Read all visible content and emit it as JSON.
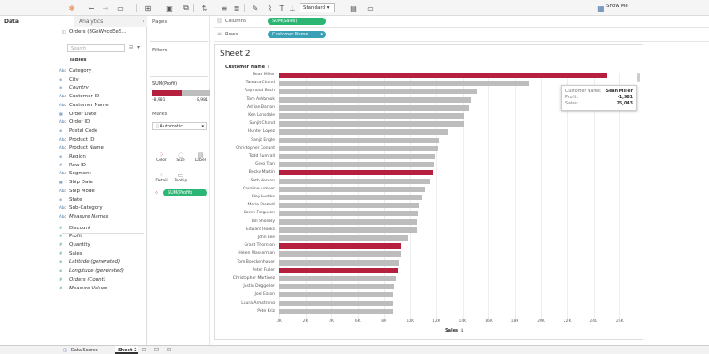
{
  "toolbar": {
    "standard_label": "Standard",
    "showme_label": "Show Me"
  },
  "left": {
    "tab_data": "Data",
    "tab_analytics": "Analytics",
    "datasource": "Orders (8GnWvcdEeS...",
    "search_placeholder": "Search",
    "tables_label": "Tables",
    "fields": [
      {
        "icon": "Abc",
        "name": "Category",
        "m": false
      },
      {
        "icon": "⊕",
        "name": "City",
        "m": false
      },
      {
        "icon": "⊕",
        "name": "Country",
        "m": false
      },
      {
        "icon": "Abc",
        "name": "Customer ID",
        "m": false
      },
      {
        "icon": "Abc",
        "name": "Customer Name",
        "m": false
      },
      {
        "icon": "▦",
        "name": "Order Date",
        "m": false
      },
      {
        "icon": "Abc",
        "name": "Order ID",
        "m": false
      },
      {
        "icon": "⊕",
        "name": "Postal Code",
        "m": false
      },
      {
        "icon": "Abc",
        "name": "Product ID",
        "m": false
      },
      {
        "icon": "Abc",
        "name": "Product Name",
        "m": false
      },
      {
        "icon": "⊕",
        "name": "Region",
        "m": false
      },
      {
        "icon": "#",
        "name": "Row ID",
        "m": false
      },
      {
        "icon": "Abc",
        "name": "Segment",
        "m": false
      },
      {
        "icon": "▦",
        "name": "Ship Date",
        "m": false
      },
      {
        "icon": "Abc",
        "name": "Ship Mode",
        "m": false
      },
      {
        "icon": "⊕",
        "name": "State",
        "m": false
      },
      {
        "icon": "Abc",
        "name": "Sub-Category",
        "m": false
      },
      {
        "icon": "Abc",
        "name": "Measure Names",
        "m": false
      },
      {
        "icon": "#",
        "name": "Discount",
        "m": true
      },
      {
        "icon": "#",
        "name": "Profit",
        "m": true
      },
      {
        "icon": "#",
        "name": "Quantity",
        "m": true
      },
      {
        "icon": "#",
        "name": "Sales",
        "m": true
      },
      {
        "icon": "⊕",
        "name": "Latitude (generated)",
        "m": true
      },
      {
        "icon": "⊕",
        "name": "Longitude (generated)",
        "m": true
      },
      {
        "icon": "#",
        "name": "Orders (Count)",
        "m": true
      },
      {
        "icon": "#",
        "name": "Measure Values",
        "m": true
      }
    ]
  },
  "cards": {
    "pages_label": "Pages",
    "filters_label": "Filters",
    "legend_title": "SUM(Profit)",
    "legend_min": "-8,981",
    "legend_max": "8,981",
    "marks_label": "Marks",
    "marks_type": "Automatic",
    "btn_color": "Color",
    "btn_size": "Size",
    "btn_label": "Label",
    "btn_detail": "Detail",
    "btn_tooltip": "Tooltip",
    "marks_pill": "SUM(Profit)"
  },
  "shelves": {
    "columns_label": "Columns",
    "columns_pill": "SUM(Sales)",
    "rows_label": "Rows",
    "rows_pill": "Customer Name"
  },
  "view": {
    "title": "Sheet 2",
    "row_header": "Customer Name",
    "x_axis_label": "Sales"
  },
  "colors": {
    "negative": "#b5203f",
    "positive": "#bdbdbd",
    "pill_green": "#2bb673",
    "pill_teal": "#3aa0b5"
  },
  "chart_data": {
    "type": "bar",
    "orientation": "horizontal",
    "xlabel": "Sales",
    "ylabel": "Customer Name",
    "xlim": [
      0,
      27000
    ],
    "xticks": [
      "0K",
      "2K",
      "4K",
      "6K",
      "8K",
      "10K",
      "12K",
      "14K",
      "16K",
      "18K",
      "20K",
      "22K",
      "24K",
      "26K"
    ],
    "categories": [
      "Sean Miller",
      "Tamara Chand",
      "Raymond Buch",
      "Tom Ashbrook",
      "Adrian Barton",
      "Ken Lonsdale",
      "Sanjit Chand",
      "Hunter Lopez",
      "Sanjit Engle",
      "Christopher Conant",
      "Todd Sumrall",
      "Greg Tran",
      "Becky Martin",
      "Seth Vernon",
      "Caroline Jumper",
      "Clay Ludtke",
      "Maria Etezadi",
      "Karen Ferguson",
      "Bill Shonely",
      "Edward Hooks",
      "John Lee",
      "Grant Thornton",
      "Helen Wasserman",
      "Tom Boeckenhauer",
      "Peter Fuller",
      "Christopher Martinez",
      "Justin Deggeller",
      "Joel Eaton",
      "Laura Armstrong",
      "Pete Kriz"
    ],
    "values": [
      25043,
      19052,
      15117,
      14596,
      14474,
      14175,
      14142,
      12873,
      12209,
      12129,
      11891,
      11820,
      11790,
      11471,
      11165,
      10880,
      10664,
      10604,
      10502,
      10484,
      9800,
      9351,
      9300,
      9133,
      9053,
      8954,
      8829,
      8762,
      8729,
      8647
    ],
    "negative_profit": [
      "Sean Miller",
      "Becky Martin",
      "Grant Thornton",
      "Peter Fuller"
    ],
    "color_field": "SUM(Profit)"
  },
  "tooltip": {
    "k1": "Customer Name:",
    "v1": "Sean Miller",
    "k2": "Profit:",
    "v2": "-1,981",
    "k3": "Sales:",
    "v3": "25,043"
  },
  "statusbar": {
    "datasource_tab": "Data Source",
    "sheet_tab": "Sheet 2"
  }
}
